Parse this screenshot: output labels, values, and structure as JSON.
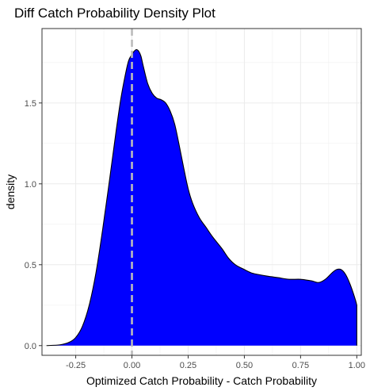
{
  "chart_data": {
    "type": "area",
    "title": "Diff Catch Probability Density Plot",
    "xlabel": "Optimized Catch Probability - Catch Probability",
    "ylabel": "density",
    "xlim": [
      -0.4,
      1.02
    ],
    "ylim": [
      -0.06,
      1.96
    ],
    "x_ticks": [
      -0.25,
      0.0,
      0.25,
      0.5,
      0.75,
      1.0
    ],
    "x_tick_labels": [
      "-0.25",
      "0.00",
      "0.25",
      "0.50",
      "0.75",
      "1.00"
    ],
    "y_ticks": [
      0.0,
      0.5,
      1.0,
      1.5
    ],
    "y_tick_labels": [
      "0.0",
      "0.5",
      "1.0",
      "1.5"
    ],
    "grid": true,
    "legend": "none",
    "fill_color": "#0000ff",
    "line_color": "#000000",
    "reference_line": {
      "x": 0.0,
      "style": "dashed",
      "color": "#bbbbbb"
    },
    "series": [
      {
        "x": [
          -0.38,
          -0.32,
          -0.28,
          -0.25,
          -0.22,
          -0.19,
          -0.16,
          -0.13,
          -0.1,
          -0.07,
          -0.05,
          -0.03,
          -0.015,
          0.0,
          0.01,
          0.02,
          0.03,
          0.04,
          0.05,
          0.07,
          0.09,
          0.11,
          0.13,
          0.15,
          0.17,
          0.19,
          0.21,
          0.23,
          0.25,
          0.27,
          0.3,
          0.33,
          0.36,
          0.4,
          0.43,
          0.46,
          0.5,
          0.53,
          0.56,
          0.6,
          0.65,
          0.7,
          0.75,
          0.8,
          0.83,
          0.86,
          0.89,
          0.91,
          0.93,
          0.95,
          0.97,
          0.99,
          1.0
        ],
        "y": [
          0.0,
          0.005,
          0.02,
          0.05,
          0.12,
          0.25,
          0.45,
          0.72,
          1.02,
          1.33,
          1.52,
          1.67,
          1.76,
          1.8,
          1.82,
          1.83,
          1.82,
          1.79,
          1.73,
          1.62,
          1.56,
          1.53,
          1.52,
          1.5,
          1.45,
          1.37,
          1.24,
          1.1,
          0.97,
          0.88,
          0.79,
          0.73,
          0.67,
          0.6,
          0.54,
          0.5,
          0.47,
          0.45,
          0.44,
          0.43,
          0.42,
          0.41,
          0.41,
          0.4,
          0.39,
          0.41,
          0.45,
          0.47,
          0.47,
          0.44,
          0.38,
          0.3,
          0.25
        ]
      }
    ]
  }
}
